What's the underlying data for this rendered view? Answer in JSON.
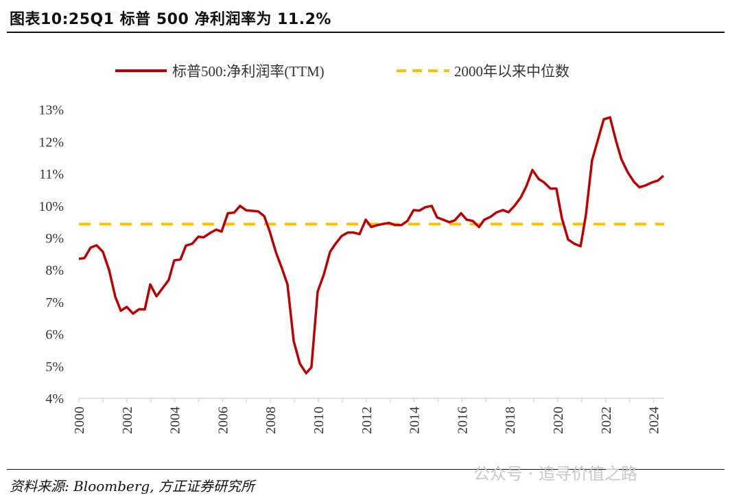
{
  "title": "图表10:25Q1 标普 500 净利润率为 11.2%",
  "source": "资料来源: Bloomberg, 方正证券研究所",
  "watermark": "公众号 · 追寻价值之路",
  "chart_data": {
    "type": "line",
    "title": "图表10:25Q1 标普 500 净利润率为 11.2%",
    "xlabel": "",
    "ylabel": "",
    "xlim": [
      2000,
      2024.45
    ],
    "ylim": [
      4,
      13
    ],
    "x_ticks": [
      "2000",
      "2002",
      "2004",
      "2006",
      "2008",
      "2010",
      "2012",
      "2014",
      "2016",
      "2018",
      "2020",
      "2022",
      "2024"
    ],
    "y_ticks": [
      "4%",
      "5%",
      "6%",
      "7%",
      "8%",
      "9%",
      "10%",
      "11%",
      "12%",
      "13%"
    ],
    "legend_position": "top-center",
    "colors": {
      "margin": "#C00000",
      "median": "#FFC000"
    },
    "series": [
      {
        "name": "标普500:净利润率(TTM)",
        "style": "solid",
        "points": [
          [
            2000.0,
            8.35
          ],
          [
            2000.23,
            8.37
          ],
          [
            2000.49,
            8.7
          ],
          [
            2000.74,
            8.77
          ],
          [
            2001.0,
            8.57
          ],
          [
            2001.26,
            8.0
          ],
          [
            2001.52,
            7.17
          ],
          [
            2001.75,
            6.73
          ],
          [
            2002.0,
            6.85
          ],
          [
            2002.26,
            6.64
          ],
          [
            2002.52,
            6.78
          ],
          [
            2002.75,
            6.77
          ],
          [
            2002.98,
            7.55
          ],
          [
            2003.24,
            7.18
          ],
          [
            2003.75,
            7.69
          ],
          [
            2003.98,
            8.3
          ],
          [
            2004.24,
            8.33
          ],
          [
            2004.47,
            8.76
          ],
          [
            2004.73,
            8.82
          ],
          [
            2004.99,
            9.04
          ],
          [
            2005.21,
            9.02
          ],
          [
            2005.47,
            9.15
          ],
          [
            2005.73,
            9.26
          ],
          [
            2005.96,
            9.2
          ],
          [
            2006.22,
            9.77
          ],
          [
            2006.48,
            9.79
          ],
          [
            2006.73,
            10.0
          ],
          [
            2006.99,
            9.86
          ],
          [
            2007.48,
            9.83
          ],
          [
            2007.74,
            9.68
          ],
          [
            2007.97,
            9.2
          ],
          [
            2008.23,
            8.55
          ],
          [
            2008.48,
            8.05
          ],
          [
            2008.71,
            7.55
          ],
          [
            2008.97,
            5.78
          ],
          [
            2009.23,
            5.08
          ],
          [
            2009.49,
            4.78
          ],
          [
            2009.71,
            4.97
          ],
          [
            2009.97,
            7.33
          ],
          [
            2010.23,
            7.86
          ],
          [
            2010.49,
            8.57
          ],
          [
            2010.72,
            8.82
          ],
          [
            2010.97,
            9.06
          ],
          [
            2011.23,
            9.17
          ],
          [
            2011.46,
            9.17
          ],
          [
            2011.72,
            9.12
          ],
          [
            2011.98,
            9.57
          ],
          [
            2012.21,
            9.34
          ],
          [
            2012.46,
            9.4
          ],
          [
            2012.72,
            9.44
          ],
          [
            2012.95,
            9.47
          ],
          [
            2013.21,
            9.4
          ],
          [
            2013.47,
            9.4
          ],
          [
            2013.72,
            9.53
          ],
          [
            2013.98,
            9.87
          ],
          [
            2014.21,
            9.85
          ],
          [
            2014.47,
            9.96
          ],
          [
            2014.73,
            10.0
          ],
          [
            2014.96,
            9.64
          ],
          [
            2015.21,
            9.57
          ],
          [
            2015.47,
            9.49
          ],
          [
            2015.7,
            9.55
          ],
          [
            2015.96,
            9.77
          ],
          [
            2016.19,
            9.57
          ],
          [
            2016.45,
            9.53
          ],
          [
            2016.71,
            9.34
          ],
          [
            2016.93,
            9.57
          ],
          [
            2017.19,
            9.66
          ],
          [
            2017.45,
            9.8
          ],
          [
            2017.71,
            9.87
          ],
          [
            2017.94,
            9.8
          ],
          [
            2018.19,
            10.0
          ],
          [
            2018.45,
            10.26
          ],
          [
            2018.68,
            10.6
          ],
          [
            2018.94,
            11.12
          ],
          [
            2019.2,
            10.84
          ],
          [
            2019.43,
            10.73
          ],
          [
            2019.69,
            10.54
          ],
          [
            2019.94,
            10.54
          ],
          [
            2020.17,
            9.62
          ],
          [
            2020.43,
            8.95
          ],
          [
            2020.69,
            8.82
          ],
          [
            2020.95,
            8.74
          ],
          [
            2021.17,
            9.7
          ],
          [
            2021.43,
            11.42
          ],
          [
            2021.69,
            12.1
          ],
          [
            2021.92,
            12.7
          ],
          [
            2022.18,
            12.76
          ],
          [
            2022.44,
            12.0
          ],
          [
            2022.66,
            11.45
          ],
          [
            2022.92,
            11.05
          ],
          [
            2023.18,
            10.75
          ],
          [
            2023.41,
            10.58
          ],
          [
            2023.67,
            10.64
          ],
          [
            2023.93,
            10.73
          ],
          [
            2024.18,
            10.79
          ],
          [
            2024.41,
            10.94
          ]
        ]
      },
      {
        "name": "2000年以来中位数",
        "style": "dashed",
        "value": 9.43
      }
    ]
  }
}
